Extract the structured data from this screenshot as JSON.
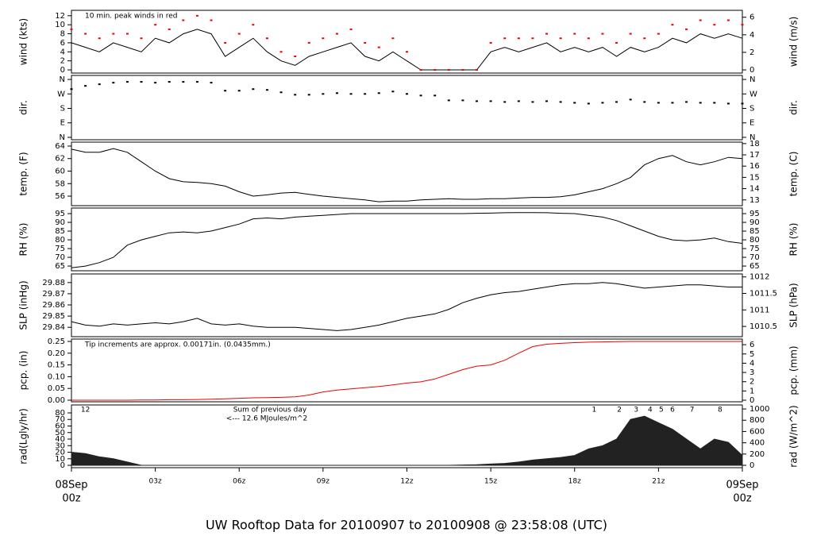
{
  "title": "UW Rooftop Data for 20100907  to  20100908 @ 23:58:08  (UTC)",
  "chart_data": [
    {
      "type": "line",
      "ylabel": "wind (kts)",
      "y2label": "wind (m/s)",
      "annotation": "10 min. peak winds in red",
      "annotation_color": "#dd0000",
      "xlim": [
        0,
        24
      ],
      "ylim": [
        -0.7,
        13.2
      ],
      "yticks": [
        0,
        2,
        4,
        6,
        8,
        10,
        12
      ],
      "y2lim": [
        -0.36,
        6.79
      ],
      "y2ticks": [
        0,
        2,
        4,
        6
      ],
      "x": [
        0,
        0.5,
        1,
        1.5,
        2,
        2.5,
        3,
        3.5,
        4,
        4.5,
        5,
        5.5,
        6,
        6.5,
        7,
        7.5,
        8,
        8.5,
        9,
        9.5,
        10,
        10.5,
        11,
        11.5,
        12,
        12.5,
        13,
        13.5,
        14,
        14.5,
        15,
        15.5,
        16,
        16.5,
        17,
        17.5,
        18,
        18.5,
        19,
        19.5,
        20,
        20.5,
        21,
        21.5,
        22,
        22.5,
        23,
        23.5,
        24
      ],
      "series": [
        {
          "kind": "line",
          "color": "#000000",
          "values": [
            6,
            5,
            4,
            6,
            5,
            4,
            7,
            6,
            8,
            9,
            8,
            3,
            5,
            7,
            4,
            2,
            1,
            3,
            4,
            5,
            6,
            3,
            2,
            4,
            2,
            0,
            0,
            0,
            0,
            0,
            4,
            5,
            4,
            5,
            6,
            4,
            5,
            4,
            5,
            3,
            5,
            4,
            5,
            7,
            6,
            8,
            7,
            8,
            7
          ]
        },
        {
          "kind": "dots",
          "color": "#ee0000",
          "values": [
            9,
            8,
            7,
            8,
            8,
            7,
            10,
            9,
            11,
            12,
            11,
            6,
            8,
            10,
            7,
            4,
            3,
            6,
            7,
            8,
            9,
            6,
            5,
            7,
            4,
            0,
            0,
            0,
            0,
            0,
            6,
            7,
            7,
            7,
            8,
            7,
            8,
            7,
            8,
            6,
            8,
            7,
            8,
            10,
            9,
            11,
            10,
            11,
            10
          ]
        }
      ]
    },
    {
      "type": "scatter",
      "ylabel": "dir.",
      "y2label": "dir.",
      "xlim": [
        0,
        24
      ],
      "ylim": [
        -15,
        385
      ],
      "yticks": [
        {
          "value": 0,
          "label": "N"
        },
        {
          "value": 90,
          "label": "E"
        },
        {
          "value": 180,
          "label": "S"
        },
        {
          "value": 270,
          "label": "W"
        },
        {
          "value": 360,
          "label": "N"
        }
      ],
      "y2lim": [
        -15,
        385
      ],
      "y2ticks": [
        {
          "value": 0,
          "label": "N"
        },
        {
          "value": 90,
          "label": "E"
        },
        {
          "value": 180,
          "label": "S"
        },
        {
          "value": 270,
          "label": "W"
        },
        {
          "value": 360,
          "label": "N"
        }
      ],
      "x": [
        0,
        0.5,
        1,
        1.5,
        2,
        2.5,
        3,
        3.5,
        4,
        4.5,
        5,
        5.5,
        6,
        6.5,
        7,
        7.5,
        8,
        8.5,
        9,
        9.5,
        10,
        10.5,
        11,
        11.5,
        12,
        12.5,
        13,
        13.5,
        14,
        14.5,
        15,
        15.5,
        16,
        16.5,
        17,
        17.5,
        18,
        18.5,
        19,
        19.5,
        20,
        20.5,
        21,
        21.5,
        22,
        22.5,
        23,
        23.5,
        24
      ],
      "series": [
        {
          "kind": "dots",
          "color": "#000000",
          "values": [
            300,
            320,
            330,
            340,
            345,
            345,
            340,
            345,
            345,
            345,
            340,
            290,
            290,
            300,
            295,
            280,
            265,
            265,
            270,
            275,
            270,
            270,
            275,
            285,
            270,
            260,
            260,
            230,
            230,
            225,
            225,
            220,
            225,
            220,
            225,
            220,
            215,
            210,
            215,
            220,
            235,
            220,
            215,
            215,
            220,
            215,
            215,
            210,
            210
          ]
        }
      ]
    },
    {
      "type": "line",
      "ylabel": "temp. (F)",
      "y2label": "temp. (C)",
      "xlim": [
        0,
        24
      ],
      "ylim": [
        54.48,
        64.63
      ],
      "yticks": [
        56,
        58,
        60,
        62,
        64
      ],
      "y2lim": [
        12.49,
        18.13
      ],
      "y2ticks": [
        13,
        14,
        15,
        16,
        17,
        18
      ],
      "x": [
        0,
        0.5,
        1,
        1.5,
        2,
        2.5,
        3,
        3.5,
        4,
        4.5,
        5,
        5.5,
        6,
        6.5,
        7,
        7.5,
        8,
        8.5,
        9,
        9.5,
        10,
        10.5,
        11,
        11.5,
        12,
        12.5,
        13,
        13.5,
        14,
        14.5,
        15,
        15.5,
        16,
        16.5,
        17,
        17.5,
        18,
        18.5,
        19,
        19.5,
        20,
        20.5,
        21,
        21.5,
        22,
        22.5,
        23,
        23.5,
        24
      ],
      "series": [
        {
          "kind": "line",
          "color": "#000000",
          "values": [
            63.5,
            63,
            63,
            63.6,
            63,
            61.5,
            60,
            58.8,
            58.3,
            58.2,
            58,
            57.6,
            56.7,
            56,
            56.2,
            56.5,
            56.6,
            56.3,
            56,
            55.8,
            55.6,
            55.4,
            55.1,
            55.2,
            55.2,
            55.4,
            55.5,
            55.6,
            55.5,
            55.5,
            55.6,
            55.6,
            55.7,
            55.8,
            55.8,
            55.9,
            56.2,
            56.7,
            57.2,
            58,
            59,
            61,
            62,
            62.5,
            61.5,
            61,
            61.5,
            62.2,
            62
          ]
        }
      ]
    },
    {
      "type": "line",
      "ylabel": "RH (%)",
      "y2label": "RH (%)",
      "xlim": [
        0,
        24
      ],
      "ylim": [
        62.3,
        98.2
      ],
      "yticks": [
        65,
        70,
        75,
        80,
        85,
        90,
        95
      ],
      "y2lim": [
        62.3,
        98.2
      ],
      "y2ticks": [
        65,
        70,
        75,
        80,
        85,
        90,
        95
      ],
      "x": [
        0,
        0.5,
        1,
        1.5,
        2,
        2.5,
        3,
        3.5,
        4,
        4.5,
        5,
        5.5,
        6,
        6.5,
        7,
        7.5,
        8,
        8.5,
        9,
        9.5,
        10,
        10.5,
        11,
        11.5,
        12,
        12.5,
        13,
        13.5,
        14,
        14.5,
        15,
        15.5,
        16,
        16.5,
        17,
        17.5,
        18,
        18.5,
        19,
        19.5,
        20,
        20.5,
        21,
        21.5,
        22,
        22.5,
        23,
        23.5,
        24
      ],
      "series": [
        {
          "kind": "line",
          "color": "#000000",
          "values": [
            64,
            65,
            67,
            70,
            77,
            80,
            82,
            84,
            84.5,
            84,
            85,
            87,
            89,
            92,
            92.5,
            92,
            93,
            93.5,
            94,
            94.5,
            95,
            95,
            95,
            95,
            95,
            95,
            95,
            95,
            95,
            95.2,
            95.3,
            95.5,
            95.6,
            95.6,
            95.5,
            95.2,
            95,
            94,
            93,
            91,
            88,
            85,
            82,
            80,
            79.5,
            80,
            81,
            79,
            78
          ]
        }
      ]
    },
    {
      "type": "line",
      "ylabel": "SLP (inHg)",
      "y2label": "SLP (hPa)",
      "xlim": [
        0,
        24
      ],
      "ylim": [
        29.8316,
        29.8877
      ],
      "yticks": [
        29.84,
        29.85,
        29.86,
        29.87,
        29.88
      ],
      "y2lim": [
        1010.19,
        1012.09
      ],
      "y2ticks": [
        1010.5,
        1011,
        1011.5,
        1012
      ],
      "x": [
        0,
        0.5,
        1,
        1.5,
        2,
        2.5,
        3,
        3.5,
        4,
        4.5,
        5,
        5.5,
        6,
        6.5,
        7,
        7.5,
        8,
        8.5,
        9,
        9.5,
        10,
        10.5,
        11,
        11.5,
        12,
        12.5,
        13,
        13.5,
        14,
        14.5,
        15,
        15.5,
        16,
        16.5,
        17,
        17.5,
        18,
        18.5,
        19,
        19.5,
        20,
        20.5,
        21,
        21.5,
        22,
        22.5,
        23,
        23.5,
        24
      ],
      "series": [
        {
          "kind": "line",
          "color": "#000000",
          "values": [
            29.845,
            29.842,
            29.841,
            29.843,
            29.842,
            29.843,
            29.844,
            29.843,
            29.845,
            29.848,
            29.843,
            29.842,
            29.843,
            29.841,
            29.84,
            29.84,
            29.84,
            29.839,
            29.838,
            29.837,
            29.838,
            29.84,
            29.842,
            29.845,
            29.848,
            29.85,
            29.852,
            29.856,
            29.862,
            29.866,
            29.869,
            29.871,
            29.872,
            29.874,
            29.876,
            29.878,
            29.879,
            29.879,
            29.88,
            29.879,
            29.877,
            29.875,
            29.876,
            29.877,
            29.878,
            29.878,
            29.877,
            29.876,
            29.876
          ]
        }
      ]
    },
    {
      "type": "line",
      "ylabel": "pcp. (in)",
      "y2label": "pcp. (mm)",
      "annotation": "Tip increments are approx. 0.00171in. (0.0435mm.)",
      "annotation_color": "#dd0000",
      "xlim": [
        0,
        24
      ],
      "ylim": [
        -0.0068,
        0.2601
      ],
      "yticks": [
        {
          "value": 0,
          "label": "0.00"
        },
        {
          "value": 0.05,
          "label": "0.05"
        },
        {
          "value": 0.1,
          "label": "0.10"
        },
        {
          "value": 0.15,
          "label": "0.15"
        },
        {
          "value": 0.2,
          "label": "0.20"
        },
        {
          "value": 0.25,
          "label": "0.25"
        }
      ],
      "y2lim": [
        -0.17,
        6.61
      ],
      "y2ticks": [
        0,
        1,
        2,
        3,
        4,
        5,
        6
      ],
      "x": [
        0,
        0.5,
        1,
        1.5,
        2,
        2.5,
        3,
        3.5,
        4,
        4.5,
        5,
        5.5,
        6,
        6.5,
        7,
        7.5,
        8,
        8.5,
        9,
        9.5,
        10,
        10.5,
        11,
        11.5,
        12,
        12.5,
        13,
        13.5,
        14,
        14.5,
        15,
        15.5,
        16,
        16.5,
        17,
        17.5,
        18,
        18.5,
        19,
        19.5,
        20,
        20.5,
        21,
        21.5,
        22,
        22.5,
        23,
        23.5,
        24
      ],
      "series": [
        {
          "kind": "line",
          "color": "#ee0000",
          "values": [
            0,
            0,
            0,
            0,
            0,
            0.001,
            0.001,
            0.002,
            0.002,
            0.003,
            0.004,
            0.006,
            0.008,
            0.01,
            0.011,
            0.012,
            0.014,
            0.022,
            0.035,
            0.043,
            0.048,
            0.053,
            0.058,
            0.065,
            0.073,
            0.078,
            0.09,
            0.11,
            0.13,
            0.145,
            0.15,
            0.17,
            0.2,
            0.228,
            0.238,
            0.242,
            0.245,
            0.247,
            0.248,
            0.249,
            0.25,
            0.25,
            0.25,
            0.25,
            0.25,
            0.25,
            0.25,
            0.25,
            0.25
          ]
        }
      ]
    },
    {
      "type": "area",
      "ylabel": "rad(Lgly/hr)",
      "y2label": "rad (W/m^2)",
      "annotation": "Sum of previous day",
      "annotation2": "<--- 12.6 MJoules/m^2",
      "annotation_color": "#9900cc",
      "hour_marks": [
        {
          "x": 0.5,
          "label": "12"
        },
        {
          "x": 18.7,
          "label": "1"
        },
        {
          "x": 19.6,
          "label": "2"
        },
        {
          "x": 20.2,
          "label": "3"
        },
        {
          "x": 20.7,
          "label": "4"
        },
        {
          "x": 21.1,
          "label": "5"
        },
        {
          "x": 21.5,
          "label": "6"
        },
        {
          "x": 22.2,
          "label": "7"
        },
        {
          "x": 23.2,
          "label": "8"
        }
      ],
      "xlim": [
        0,
        24
      ],
      "ylim": [
        -3.6,
        92.1
      ],
      "yticks": [
        0,
        10,
        20,
        30,
        40,
        50,
        60,
        70,
        80
      ],
      "y2lim": [
        -42,
        1071
      ],
      "y2ticks": [
        0,
        200,
        400,
        600,
        800,
        1000
      ],
      "xticks": [
        {
          "value": 0,
          "label": "00z"
        },
        {
          "value": 3,
          "label": "03z"
        },
        {
          "value": 6,
          "label": "06z"
        },
        {
          "value": 9,
          "label": "09z"
        },
        {
          "value": 12,
          "label": "12z"
        },
        {
          "value": 15,
          "label": "15z"
        },
        {
          "value": 18,
          "label": "18z"
        },
        {
          "value": 21,
          "label": "21z"
        },
        {
          "value": 24,
          "label": "00z"
        }
      ],
      "date_labels": [
        {
          "x": 0,
          "label": "08Sep"
        },
        {
          "x": 24,
          "label": "09Sep"
        }
      ],
      "date_color": "#ee0000",
      "x": [
        0,
        0.5,
        1,
        1.5,
        2,
        2.5,
        3,
        3.5,
        4,
        4.5,
        5,
        5.5,
        6,
        6.5,
        7,
        7.5,
        8,
        8.5,
        9,
        9.5,
        10,
        10.5,
        11,
        11.5,
        12,
        12.5,
        13,
        13.5,
        14,
        14.5,
        15,
        15.5,
        16,
        16.5,
        17,
        17.5,
        18,
        18.5,
        19,
        19.5,
        20,
        20.5,
        21,
        21.5,
        22,
        22.5,
        23,
        23.5,
        24
      ],
      "series": [
        {
          "kind": "area",
          "color": "#222222",
          "values": [
            20,
            18,
            13,
            10,
            5,
            0,
            0,
            0,
            0,
            0,
            0,
            0,
            0,
            0,
            0,
            0,
            0,
            0,
            0,
            0,
            0,
            0,
            0,
            0,
            0,
            0,
            0,
            0,
            0.5,
            1,
            2,
            3,
            5,
            8,
            10,
            12,
            15,
            25,
            30,
            40,
            70,
            75,
            65,
            55,
            40,
            25,
            40,
            35,
            15
          ]
        }
      ]
    }
  ]
}
